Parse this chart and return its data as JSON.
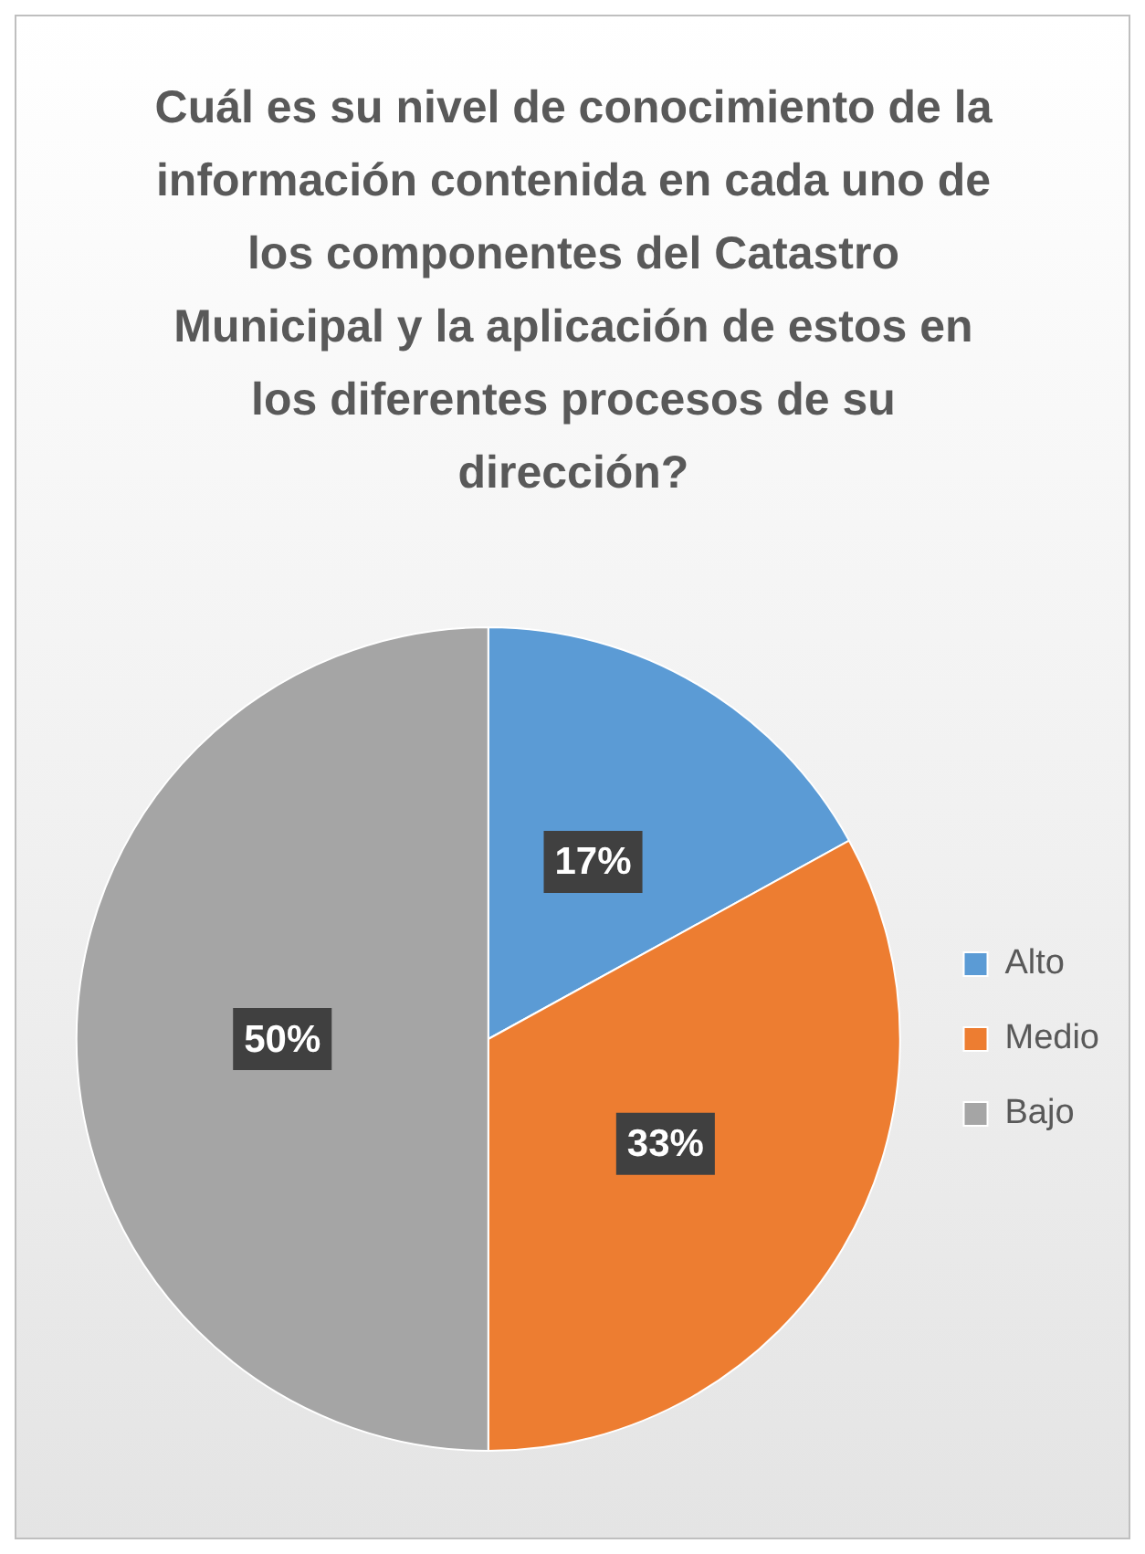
{
  "chart_data": {
    "type": "pie",
    "title": "Cuál es su nivel de conocimiento de la información contenida en cada uno de los componentes del Catastro Municipal y la aplicación de estos en los diferentes procesos de su dirección?",
    "categories": [
      "Alto",
      "Medio",
      "Bajo"
    ],
    "values": [
      17,
      33,
      50
    ],
    "colors": [
      "#5b9bd5",
      "#ed7d31",
      "#a5a5a5"
    ],
    "value_labels": [
      "17%",
      "33%",
      "50%"
    ],
    "legend": "right"
  }
}
